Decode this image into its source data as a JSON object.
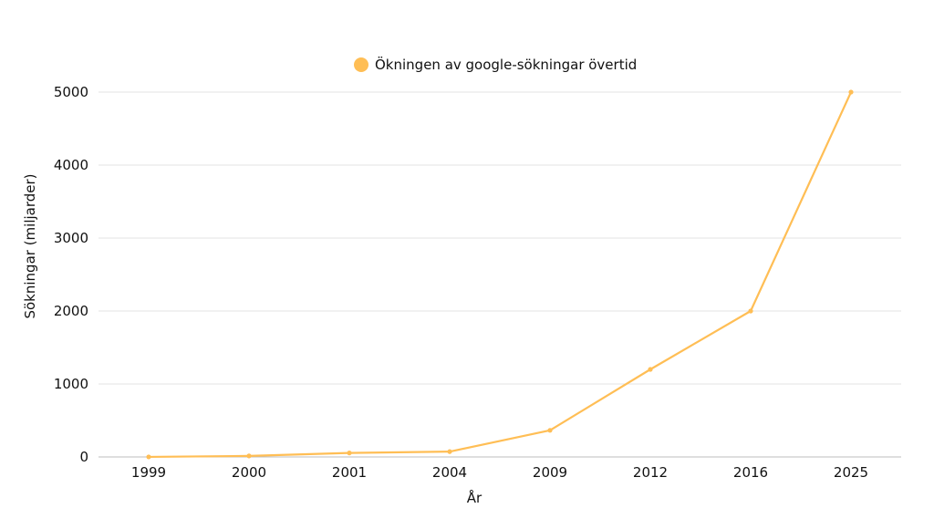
{
  "chart_data": {
    "type": "line",
    "categories": [
      "1999",
      "2000",
      "2001",
      "2004",
      "2009",
      "2012",
      "2016",
      "2025"
    ],
    "series": [
      {
        "name": "Ökningen av google-sökningar övertid",
        "values": [
          1,
          14,
          55,
          73,
          365,
          1200,
          2000,
          5000
        ],
        "color": "#FFBE55"
      }
    ],
    "xlabel": "År",
    "ylabel": "Sökningar (miljarder)",
    "ylim": [
      0,
      5000
    ],
    "yticks": [
      0,
      1000,
      2000,
      3000,
      4000,
      5000
    ],
    "grid": true,
    "legend_position": "top-center"
  }
}
